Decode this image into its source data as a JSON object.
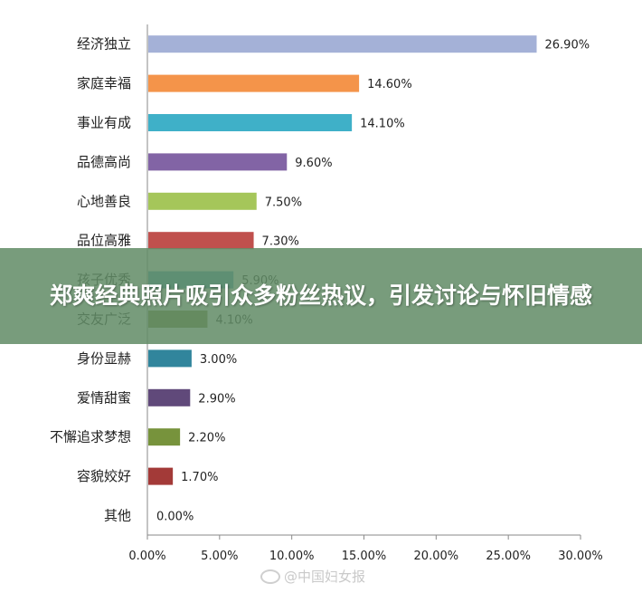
{
  "banner": {
    "title": "郑爽经典照片吸引众多粉丝热议，引发讨论与怀旧情感"
  },
  "watermark": {
    "text": "@中国妇女报"
  },
  "chart_data": {
    "type": "bar",
    "orientation": "horizontal",
    "title": "",
    "xlabel": "",
    "ylabel": "",
    "xlim": [
      0,
      30
    ],
    "x_ticks": [
      "0.00%",
      "5.00%",
      "10.00%",
      "15.00%",
      "20.00%",
      "25.00%",
      "30.00%"
    ],
    "x_tick_values": [
      0,
      5,
      10,
      15,
      20,
      25,
      30
    ],
    "grid": false,
    "legend": "none",
    "categories": [
      "经济独立",
      "家庭幸福",
      "事业有成",
      "品德高尚",
      "心地善良",
      "品位高雅",
      "孩子优秀",
      "交友广泛",
      "身份显赫",
      "爱情甜蜜",
      "不懈追求梦想",
      "容貌姣好",
      "其他"
    ],
    "values": [
      26.9,
      14.6,
      14.1,
      9.6,
      7.5,
      7.3,
      5.9,
      4.1,
      3.0,
      2.9,
      2.2,
      1.7,
      0.0
    ],
    "value_labels": [
      "26.90%",
      "14.60%",
      "14.10%",
      "9.60%",
      "7.50%",
      "7.30%",
      "5.90%",
      "4.10%",
      "3.00%",
      "2.90%",
      "2.20%",
      "1.70%",
      "0.00%"
    ],
    "colors": [
      "#a4b1d7",
      "#f4944a",
      "#3fb0c8",
      "#8264a5",
      "#a5c65a",
      "#c0504d",
      "#4aa6c0",
      "#7b8a3e",
      "#31859c",
      "#60497a",
      "#77933c",
      "#a33a38",
      "#808080"
    ]
  }
}
